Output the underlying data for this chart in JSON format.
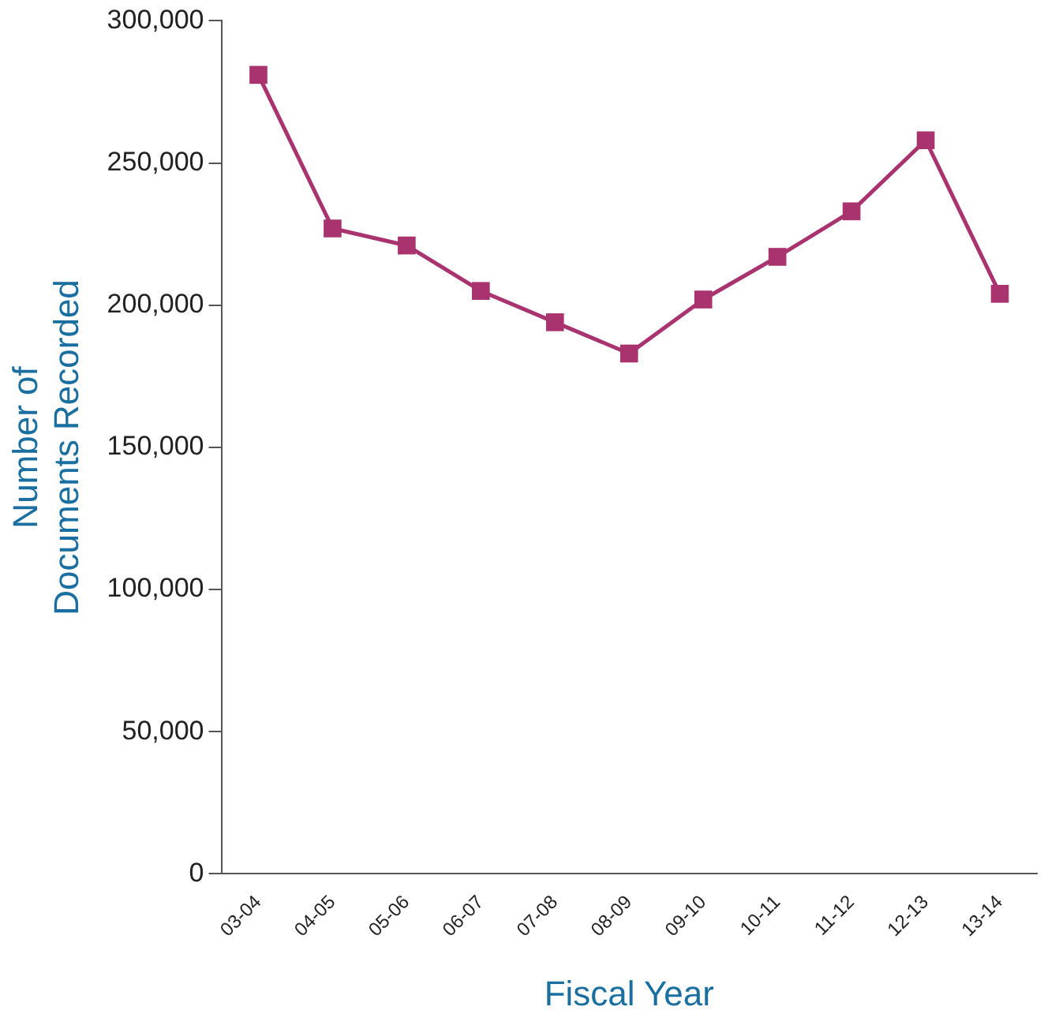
{
  "chart_data": {
    "type": "line",
    "xlabel": "Fiscal Year",
    "ylabel": "Number of\nDocuments Recorded",
    "categories": [
      "03-04",
      "04-05",
      "05-06",
      "06-07",
      "07-08",
      "08-09",
      "09-10",
      "10-11",
      "11-12",
      "12-13",
      "13-14"
    ],
    "series": [
      {
        "color": "#a8336f",
        "values": [
          281000,
          227000,
          221000,
          205000,
          194000,
          183000,
          202000,
          217000,
          233000,
          258000,
          204000
        ]
      }
    ],
    "ylim": [
      0,
      300000
    ],
    "yticks": [
      {
        "value": 0,
        "label": "0"
      },
      {
        "value": 50000,
        "label": "50,000"
      },
      {
        "value": 100000,
        "label": "100,000"
      },
      {
        "value": 150000,
        "label": "150,000"
      },
      {
        "value": 200000,
        "label": "200,000"
      },
      {
        "value": 250000,
        "label": "250,000"
      },
      {
        "value": 300000,
        "label": "300,000"
      }
    ],
    "grid": false,
    "legend": false,
    "marker": "square",
    "line_style": "solid"
  }
}
